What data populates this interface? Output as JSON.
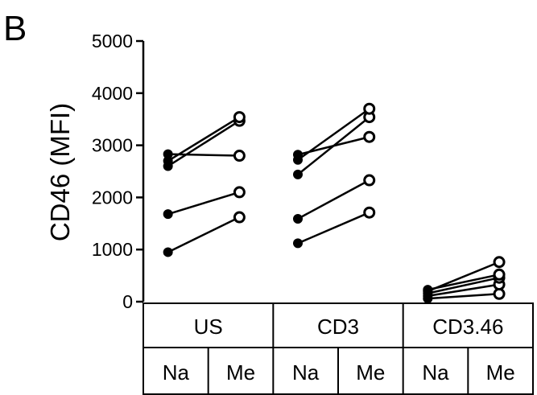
{
  "panel_label": "B",
  "chart_data": {
    "type": "scatter",
    "ylabel": "CD46 (MFI)",
    "ylim": [
      0,
      5000
    ],
    "yticks": [
      0,
      1000,
      2000,
      3000,
      4000,
      5000
    ],
    "groups": [
      {
        "label": "US",
        "conditions": [
          "Na",
          "Me"
        ],
        "pairs": [
          [
            950,
            1620
          ],
          [
            1680,
            2100
          ],
          [
            2600,
            3470
          ],
          [
            2700,
            3540
          ],
          [
            2830,
            2800
          ]
        ]
      },
      {
        "label": "CD3",
        "conditions": [
          "Na",
          "Me"
        ],
        "pairs": [
          [
            1120,
            1710
          ],
          [
            1590,
            2330
          ],
          [
            2440,
            3540
          ],
          [
            2720,
            3700
          ],
          [
            2820,
            3160
          ]
        ]
      },
      {
        "label": "CD3.46",
        "conditions": [
          "Na",
          "Me"
        ],
        "pairs": [
          [
            60,
            150
          ],
          [
            110,
            330
          ],
          [
            160,
            460
          ],
          [
            200,
            760
          ],
          [
            230,
            520
          ]
        ]
      }
    ],
    "markers": {
      "Na": "filled-circle",
      "Me": "open-circle"
    },
    "color": "#000000"
  }
}
